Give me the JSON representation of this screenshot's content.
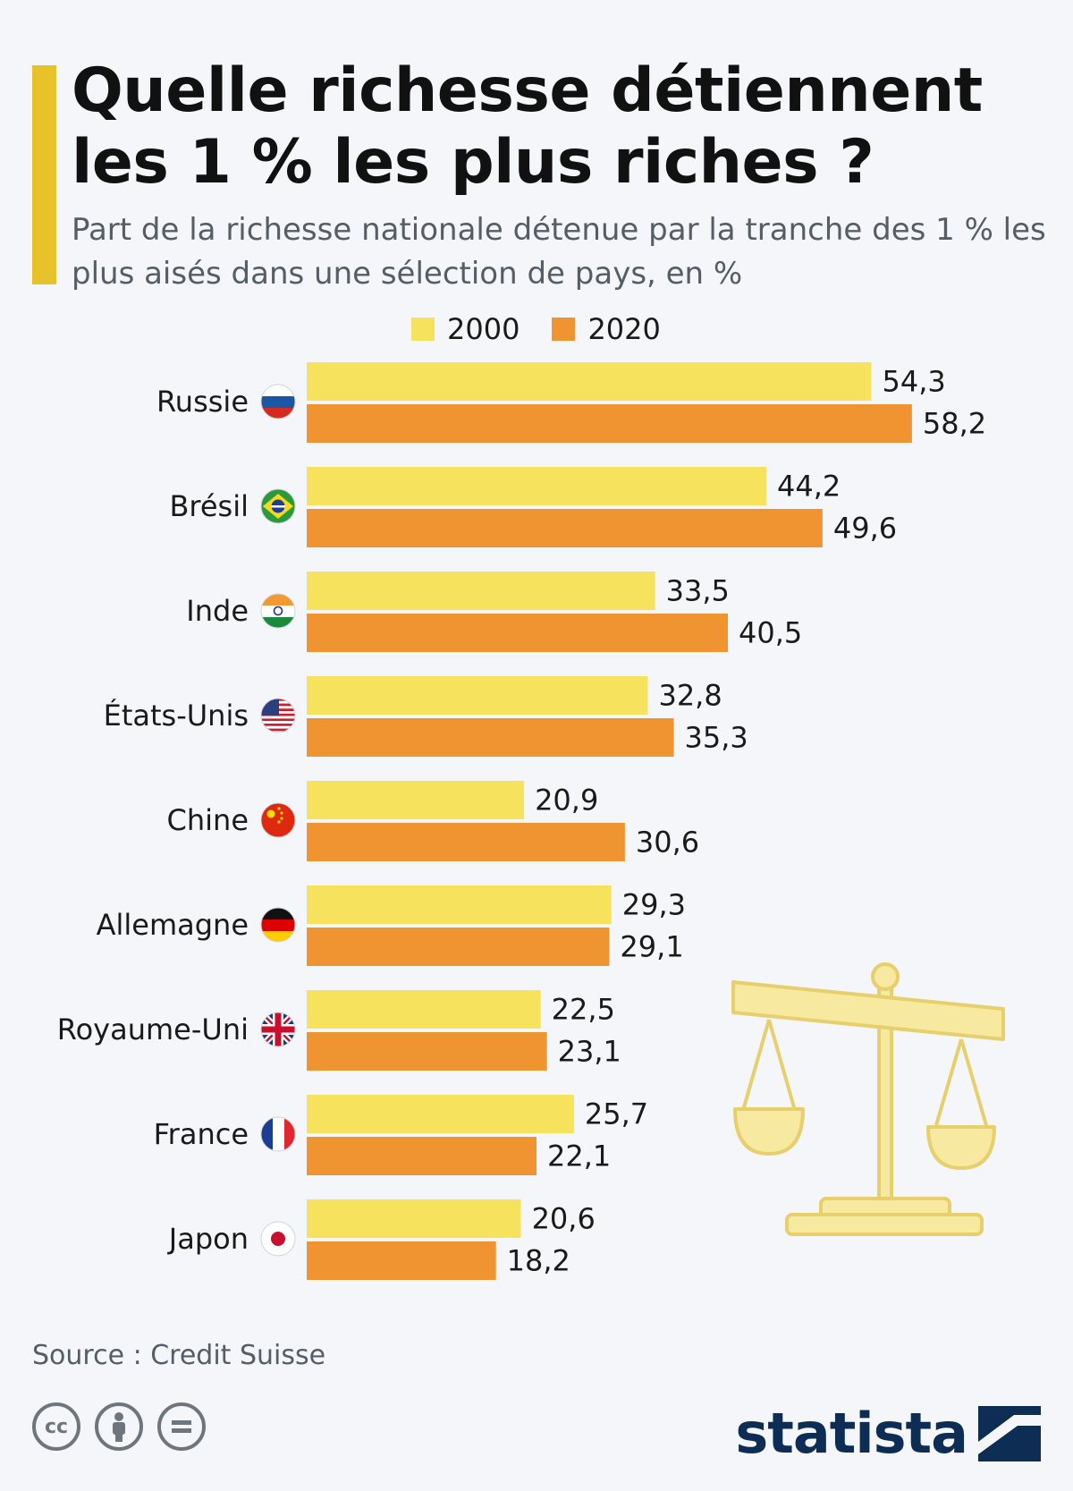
{
  "header": {
    "title": "Quelle richesse détiennent les 1 % les plus riches ?",
    "subtitle": "Part de la richesse nationale détenue par la tranche des 1 % les plus aisés dans une sélection de pays, en %"
  },
  "legend": [
    {
      "label": "2000",
      "color": "#f7e25d"
    },
    {
      "label": "2020",
      "color": "#ef9430"
    }
  ],
  "chart_data": {
    "type": "bar",
    "orientation": "horizontal",
    "categories": [
      "Russie",
      "Brésil",
      "Inde",
      "États-Unis",
      "Chine",
      "Allemagne",
      "Royaume-Uni",
      "France",
      "Japon"
    ],
    "series": [
      {
        "name": "2000",
        "color": "#f7e25d",
        "values": [
          54.3,
          44.2,
          33.5,
          32.8,
          20.9,
          29.3,
          22.5,
          25.7,
          20.6
        ],
        "labels": [
          "54,3",
          "44,2",
          "33,5",
          "32,8",
          "20,9",
          "29,3",
          "22,5",
          "25,7",
          "20,6"
        ]
      },
      {
        "name": "2020",
        "color": "#ef9430",
        "values": [
          58.2,
          49.6,
          40.5,
          35.3,
          30.6,
          29.1,
          23.1,
          22.1,
          18.2
        ],
        "labels": [
          "58,2",
          "49,6",
          "40,5",
          "35,3",
          "30,6",
          "29,1",
          "23,1",
          "22,1",
          "18,2"
        ]
      }
    ],
    "flags": [
      "russia",
      "brazil",
      "india",
      "usa",
      "china",
      "germany",
      "uk",
      "france",
      "japan"
    ],
    "xlim": [
      0,
      60
    ],
    "grid": false
  },
  "footer": {
    "source": "Source : Credit Suisse",
    "brand": "statista",
    "license_icons": [
      "cc-icon",
      "by-icon",
      "nd-icon"
    ]
  }
}
